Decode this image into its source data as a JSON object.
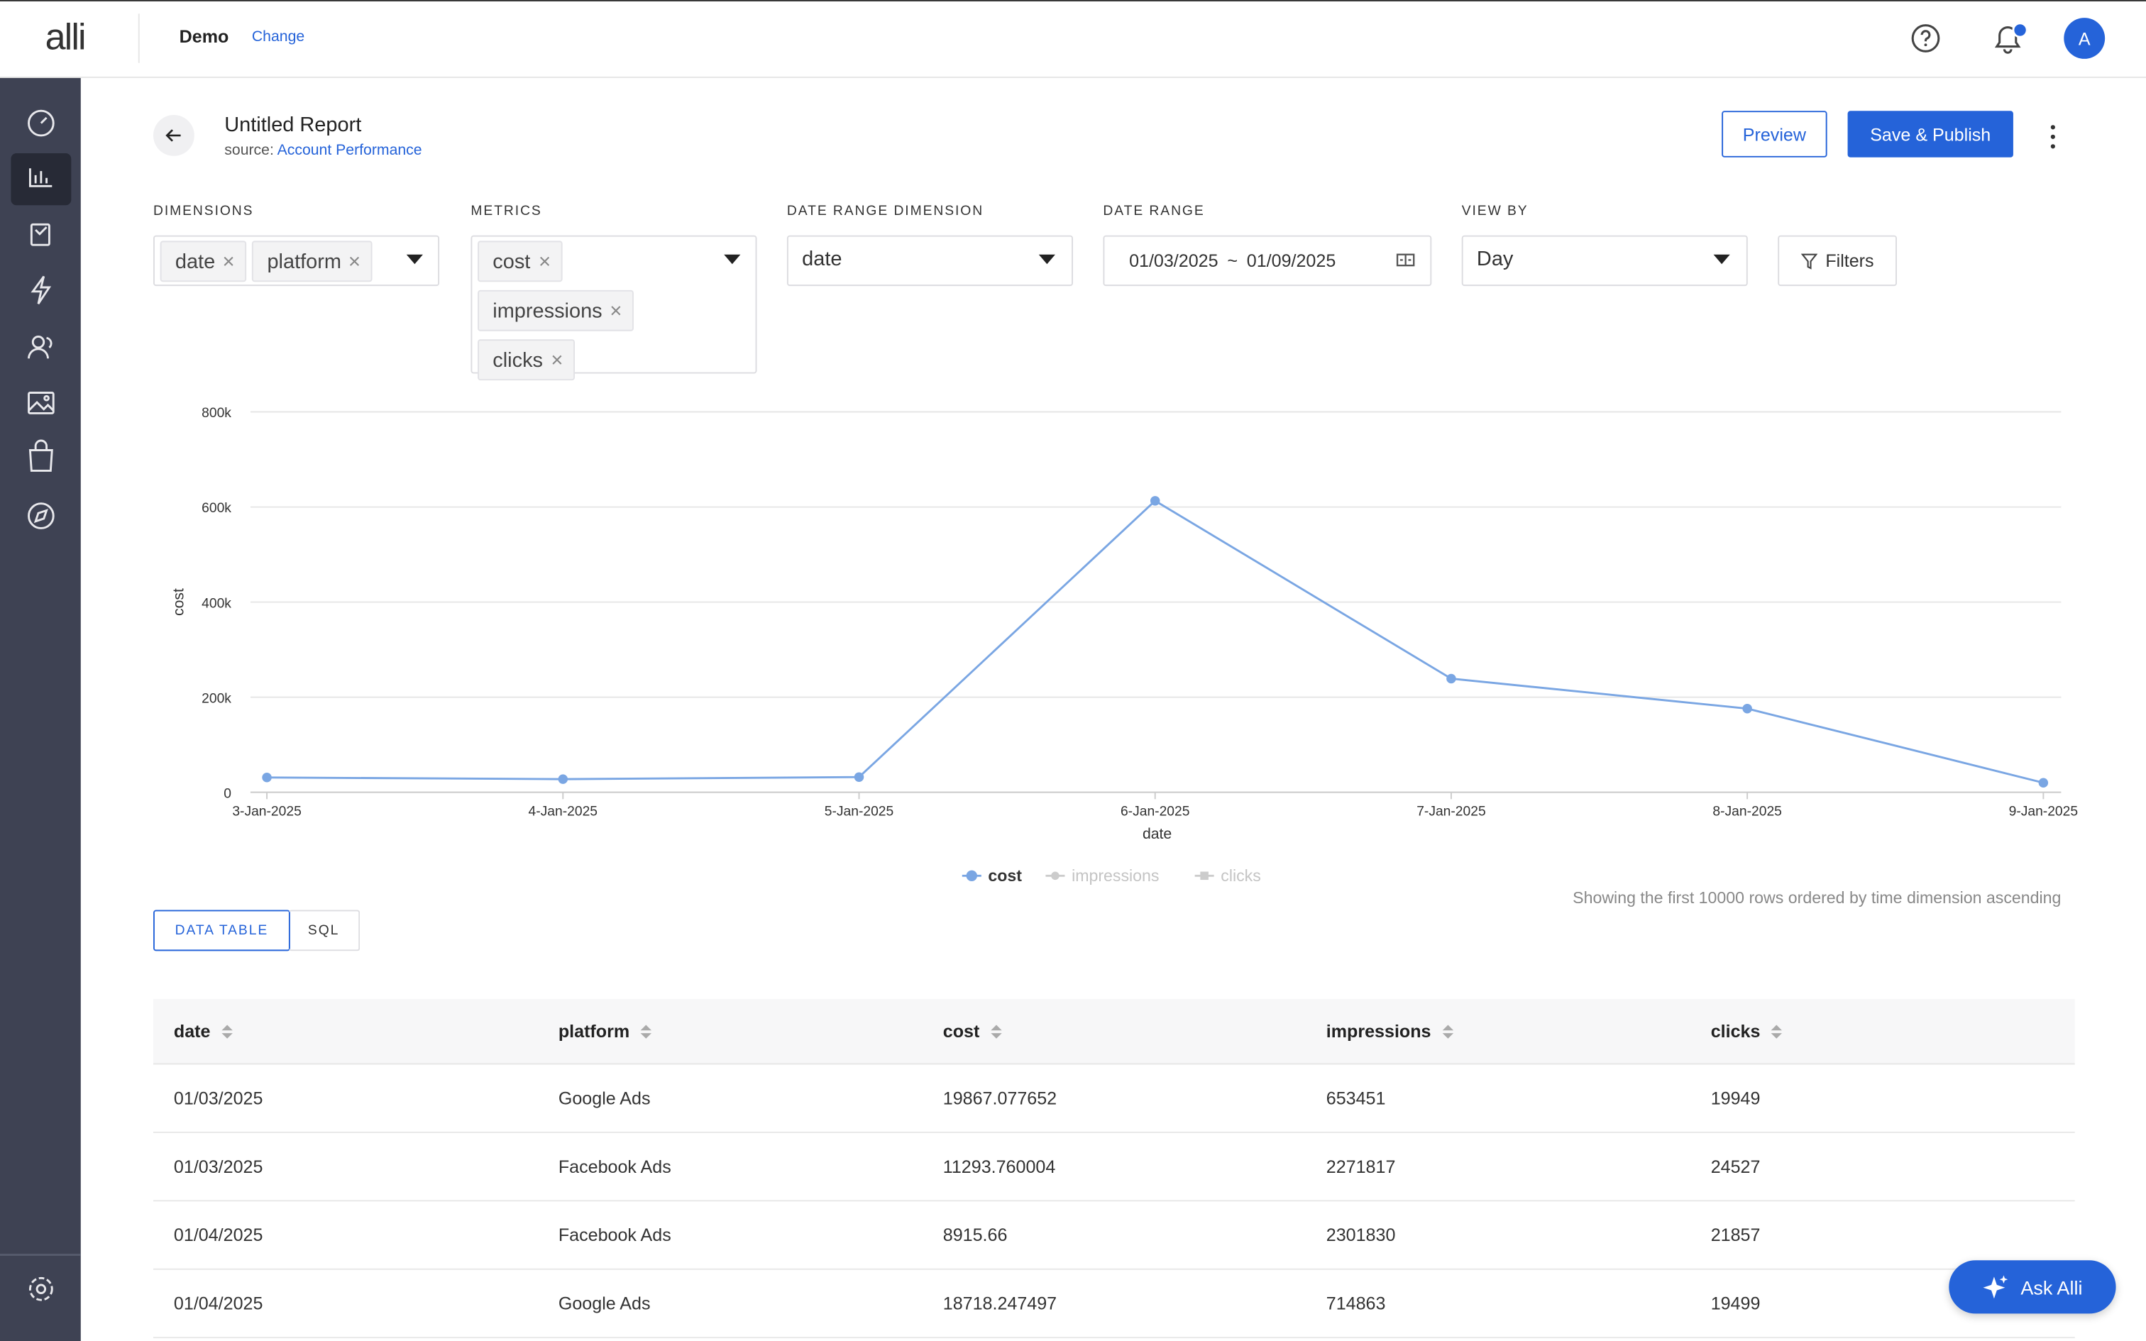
{
  "header": {
    "logo": "alli",
    "workspace": "Demo",
    "change": "Change",
    "avatar": "A"
  },
  "report": {
    "title": "Untitled Report",
    "source_label": "source:",
    "source": "Account Performance",
    "preview": "Preview",
    "publish": "Save & Publish"
  },
  "controls": {
    "dimensions": {
      "label": "DIMENSIONS",
      "tags": [
        "date",
        "platform"
      ]
    },
    "metrics": {
      "label": "METRICS",
      "tags": [
        "cost",
        "impressions",
        "clicks"
      ]
    },
    "date_range_dimension": {
      "label": "DATE RANGE DIMENSION",
      "value": "date"
    },
    "date_range": {
      "label": "DATE RANGE",
      "start": "01/03/2025",
      "separator": "~",
      "end": "01/09/2025"
    },
    "view_by": {
      "label": "VIEW BY",
      "value": "Day"
    },
    "filters": "Filters"
  },
  "chart_data": {
    "type": "line",
    "categories": [
      "3-Jan-2025",
      "4-Jan-2025",
      "5-Jan-2025",
      "6-Jan-2025",
      "7-Jan-2025",
      "8-Jan-2025",
      "9-Jan-2025"
    ],
    "series": [
      {
        "name": "cost",
        "color": "#7aa6e3",
        "values": [
          31161,
          27634,
          32000,
          613000,
          239000,
          176000,
          20000
        ]
      }
    ],
    "legend": [
      {
        "name": "cost",
        "active": true
      },
      {
        "name": "impressions",
        "active": false
      },
      {
        "name": "clicks",
        "active": false
      }
    ],
    "xlabel": "date",
    "ylabel": "cost",
    "ylim": [
      0,
      800000
    ],
    "yticks": [
      0,
      {
        "value": 200000,
        "label": "200k"
      },
      {
        "value": 400000,
        "label": "400k"
      },
      {
        "value": 600000,
        "label": "600k"
      },
      {
        "value": 800000,
        "label": "800k"
      }
    ],
    "grid": true
  },
  "note": "Showing the first 10000 rows ordered by time dimension ascending",
  "tabs": [
    "DATA TABLE",
    "SQL"
  ],
  "table": {
    "columns": [
      "date",
      "platform",
      "cost",
      "impressions",
      "clicks"
    ],
    "rows": [
      [
        "01/03/2025",
        "Google Ads",
        "19867.077652",
        "653451",
        "19949"
      ],
      [
        "01/03/2025",
        "Facebook Ads",
        "11293.760004",
        "2271817",
        "24527"
      ],
      [
        "01/04/2025",
        "Facebook Ads",
        "8915.66",
        "2301830",
        "21857"
      ],
      [
        "01/04/2025",
        "Google Ads",
        "18718.247497",
        "714863",
        "19499"
      ]
    ]
  },
  "ask": "Ask Alli"
}
